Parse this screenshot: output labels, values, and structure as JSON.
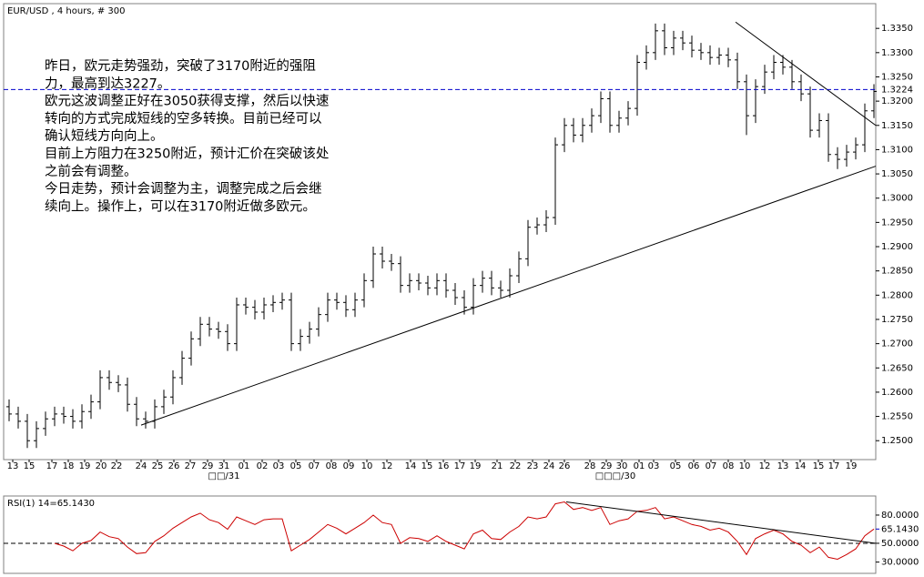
{
  "chart_data": [
    {
      "type": "ohlc",
      "title": "EUR/USD , 4 hours, # 300",
      "color": "#000000",
      "open": [
        1.257,
        1.2555,
        1.254,
        1.25,
        1.2525,
        1.2545,
        1.2555,
        1.255,
        1.254,
        1.256,
        1.258,
        1.263,
        1.262,
        1.2615,
        1.2575,
        1.2545,
        1.254,
        1.257,
        1.259,
        1.263,
        1.267,
        1.271,
        1.274,
        1.273,
        1.2725,
        1.27,
        1.278,
        1.2775,
        1.2765,
        1.278,
        1.2785,
        1.279,
        1.27,
        1.2715,
        1.273,
        1.276,
        1.279,
        1.2785,
        1.277,
        1.279,
        1.283,
        1.2885,
        1.287,
        1.2865,
        1.282,
        1.283,
        1.2825,
        1.2815,
        1.283,
        1.281,
        1.2795,
        1.2775,
        1.282,
        1.2835,
        1.2815,
        1.281,
        1.284,
        1.2875,
        1.294,
        1.2945,
        1.296,
        1.311,
        1.315,
        1.313,
        1.315,
        1.317,
        1.3205,
        1.315,
        1.3165,
        1.3185,
        1.328,
        1.33,
        1.3345,
        1.331,
        1.333,
        1.332,
        1.3305,
        1.33,
        1.329,
        1.3295,
        1.3285,
        1.324,
        1.317,
        1.323,
        1.326,
        1.328,
        1.327,
        1.324,
        1.3215,
        1.314,
        1.316,
        1.309,
        1.308,
        1.3095,
        1.311,
        1.318
      ],
      "high": [
        1.2585,
        1.257,
        1.2555,
        1.254,
        1.256,
        1.257,
        1.257,
        1.2565,
        1.2575,
        1.2595,
        1.2645,
        1.2645,
        1.2635,
        1.263,
        1.259,
        1.256,
        1.2585,
        1.2605,
        1.2645,
        1.2685,
        1.2725,
        1.2755,
        1.2755,
        1.2745,
        1.274,
        1.2795,
        1.2795,
        1.279,
        1.2795,
        1.28,
        1.2805,
        1.2805,
        1.273,
        1.2745,
        1.2775,
        1.2805,
        1.2805,
        1.28,
        1.2805,
        1.2845,
        1.29,
        1.29,
        1.2885,
        1.288,
        1.2845,
        1.2845,
        1.284,
        1.2845,
        1.2845,
        1.2825,
        1.281,
        1.2835,
        1.285,
        1.285,
        1.283,
        1.2855,
        1.289,
        1.2955,
        1.296,
        1.2975,
        1.3125,
        1.3165,
        1.3165,
        1.3165,
        1.3185,
        1.322,
        1.322,
        1.318,
        1.32,
        1.3295,
        1.3315,
        1.336,
        1.336,
        1.3345,
        1.3345,
        1.3335,
        1.332,
        1.3315,
        1.331,
        1.331,
        1.33,
        1.3255,
        1.3245,
        1.3275,
        1.3295,
        1.3295,
        1.3285,
        1.3255,
        1.323,
        1.3175,
        1.3175,
        1.3105,
        1.311,
        1.3125,
        1.3195,
        1.3235
      ],
      "low": [
        1.254,
        1.2525,
        1.2485,
        1.2485,
        1.251,
        1.253,
        1.2535,
        1.2525,
        1.2525,
        1.2545,
        1.2565,
        1.2605,
        1.26,
        1.256,
        1.253,
        1.2525,
        1.2525,
        1.2555,
        1.2575,
        1.2615,
        1.2655,
        1.2695,
        1.2715,
        1.271,
        1.2685,
        1.2685,
        1.276,
        1.275,
        1.275,
        1.2765,
        1.277,
        1.2685,
        1.2685,
        1.27,
        1.2715,
        1.2745,
        1.277,
        1.2755,
        1.2755,
        1.2775,
        1.2815,
        1.2855,
        1.285,
        1.2805,
        1.2805,
        1.281,
        1.28,
        1.28,
        1.2795,
        1.278,
        1.276,
        1.276,
        1.2805,
        1.28,
        1.2795,
        1.2795,
        1.2825,
        1.286,
        1.2925,
        1.293,
        1.2945,
        1.3095,
        1.3115,
        1.3115,
        1.3135,
        1.3155,
        1.3135,
        1.3135,
        1.315,
        1.317,
        1.3265,
        1.3285,
        1.3295,
        1.3295,
        1.3305,
        1.329,
        1.3285,
        1.3275,
        1.3275,
        1.327,
        1.3225,
        1.313,
        1.3155,
        1.3215,
        1.3245,
        1.3255,
        1.3225,
        1.32,
        1.3125,
        1.3125,
        1.3075,
        1.306,
        1.3065,
        1.308,
        1.3095,
        1.3165
      ],
      "close": [
        1.2555,
        1.254,
        1.25,
        1.2525,
        1.2545,
        1.2555,
        1.255,
        1.254,
        1.256,
        1.258,
        1.263,
        1.262,
        1.2615,
        1.2575,
        1.2545,
        1.254,
        1.257,
        1.259,
        1.263,
        1.267,
        1.271,
        1.274,
        1.273,
        1.2725,
        1.27,
        1.278,
        1.2775,
        1.2765,
        1.278,
        1.2785,
        1.279,
        1.27,
        1.2715,
        1.273,
        1.276,
        1.279,
        1.2785,
        1.277,
        1.279,
        1.283,
        1.2885,
        1.287,
        1.2865,
        1.282,
        1.283,
        1.2825,
        1.2815,
        1.283,
        1.281,
        1.2795,
        1.2775,
        1.282,
        1.2835,
        1.2815,
        1.281,
        1.284,
        1.2875,
        1.294,
        1.2945,
        1.296,
        1.311,
        1.315,
        1.313,
        1.315,
        1.317,
        1.3205,
        1.315,
        1.3165,
        1.3185,
        1.328,
        1.33,
        1.3345,
        1.331,
        1.333,
        1.332,
        1.3305,
        1.33,
        1.329,
        1.3295,
        1.3285,
        1.324,
        1.317,
        1.323,
        1.326,
        1.328,
        1.327,
        1.324,
        1.3215,
        1.314,
        1.316,
        1.309,
        1.308,
        1.3095,
        1.311,
        1.318,
        1.322
      ],
      "xlim": [
        -0.6,
        95.2
      ],
      "ylim": [
        1.2461,
        1.3401
      ],
      "y_axis_side": "right",
      "xticks": [
        {
          "value": 0.4,
          "label": "13"
        },
        {
          "value": 2.2,
          "label": "15"
        },
        {
          "value": 4.7,
          "label": "17"
        },
        {
          "value": 6.5,
          "label": "18"
        },
        {
          "value": 8.3,
          "label": "19"
        },
        {
          "value": 10.1,
          "label": "20"
        },
        {
          "value": 11.8,
          "label": "22"
        },
        {
          "value": 14.5,
          "label": "24"
        },
        {
          "value": 16.3,
          "label": "25"
        },
        {
          "value": 18.1,
          "label": "26"
        },
        {
          "value": 19.9,
          "label": "27"
        },
        {
          "value": 21.8,
          "label": "29"
        },
        {
          "value": 23.6,
          "label": "31"
        },
        {
          "value": 25.8,
          "label": "01"
        },
        {
          "value": 27.8,
          "label": "02"
        },
        {
          "value": 29.6,
          "label": "03"
        },
        {
          "value": 31.5,
          "label": "05"
        },
        {
          "value": 33.5,
          "label": "07"
        },
        {
          "value": 35.4,
          "label": "08"
        },
        {
          "value": 37.3,
          "label": "09"
        },
        {
          "value": 39.3,
          "label": "10"
        },
        {
          "value": 41.5,
          "label": "12"
        },
        {
          "value": 44.1,
          "label": "14"
        },
        {
          "value": 45.9,
          "label": "15"
        },
        {
          "value": 47.7,
          "label": "16"
        },
        {
          "value": 49.5,
          "label": "17"
        },
        {
          "value": 51.2,
          "label": "19"
        },
        {
          "value": 53.6,
          "label": "21"
        },
        {
          "value": 55.6,
          "label": "22"
        },
        {
          "value": 57.5,
          "label": "23"
        },
        {
          "value": 59.3,
          "label": "24"
        },
        {
          "value": 61.0,
          "label": "26"
        },
        {
          "value": 63.8,
          "label": "28"
        },
        {
          "value": 65.6,
          "label": "29"
        },
        {
          "value": 67.3,
          "label": "30"
        },
        {
          "value": 69.2,
          "label": "01"
        },
        {
          "value": 70.8,
          "label": "03"
        },
        {
          "value": 73.2,
          "label": "05"
        },
        {
          "value": 75.2,
          "label": "06"
        },
        {
          "value": 77.1,
          "label": "07"
        },
        {
          "value": 79.0,
          "label": "08"
        },
        {
          "value": 80.8,
          "label": "10"
        },
        {
          "value": 83.0,
          "label": "12"
        },
        {
          "value": 85.0,
          "label": "13"
        },
        {
          "value": 86.9,
          "label": "14"
        },
        {
          "value": 88.9,
          "label": "15"
        },
        {
          "value": 90.6,
          "label": "17"
        },
        {
          "value": 92.5,
          "label": "19"
        }
      ],
      "x_group_labels": [
        {
          "value": 23.6,
          "label": "□□/31"
        },
        {
          "value": 66.6,
          "label": "□□□/30"
        }
      ],
      "yticks": [
        {
          "value": 1.25,
          "label": "1.2500"
        },
        {
          "value": 1.255,
          "label": "1.2550"
        },
        {
          "value": 1.26,
          "label": "1.2600"
        },
        {
          "value": 1.265,
          "label": "1.2650"
        },
        {
          "value": 1.27,
          "label": "1.2700"
        },
        {
          "value": 1.275,
          "label": "1.2750"
        },
        {
          "value": 1.28,
          "label": "1.2800"
        },
        {
          "value": 1.285,
          "label": "1.2850"
        },
        {
          "value": 1.29,
          "label": "1.2900"
        },
        {
          "value": 1.295,
          "label": "1.2950"
        },
        {
          "value": 1.3,
          "label": "1.3000"
        },
        {
          "value": 1.305,
          "label": "1.3050"
        },
        {
          "value": 1.31,
          "label": "1.3100"
        },
        {
          "value": 1.315,
          "label": "1.3150"
        },
        {
          "value": 1.32,
          "label": "1.3200"
        },
        {
          "value": 1.325,
          "label": "1.3250"
        },
        {
          "value": 1.33,
          "label": "1.3300"
        },
        {
          "value": 1.335,
          "label": "1.3350"
        }
      ],
      "price_line": {
        "value": 1.3224,
        "label": "1.3224",
        "color": "#0000cc"
      },
      "trend_lines": [
        {
          "x": [
            14.5,
            95.2
          ],
          "y": [
            1.2532,
            1.3066
          ]
        },
        {
          "x": [
            79.8,
            95.2
          ],
          "y": [
            1.3363,
            1.315
          ]
        }
      ],
      "annotation": {
        "color": "#cc0000",
        "lines": [
          "昨日，欧元走势强劲，突破了3170附近的强阻",
          "力，最高到达3227。",
          "欧元这波调整正好在3050获得支撑，然后以快速",
          "转向的方式完成短线的空多转换。目前已经可以",
          "确认短线方向向上。",
          "目前上方阻力在3250附近，预计汇价在突破该处",
          "之前会有调整。",
          "今日走势，预计会调整为主，调整完成之后会继",
          "续向上。操作上，可以在3170附近做多欧元。"
        ]
      }
    },
    {
      "type": "line",
      "title": "RSI(1) 14=65.1430",
      "color": "#cc0000",
      "values": [
        null,
        null,
        null,
        null,
        null,
        50,
        47,
        42,
        50,
        53,
        62,
        57,
        55,
        46,
        39,
        40,
        52,
        58,
        66,
        72,
        78,
        82,
        75,
        72,
        65,
        78,
        74,
        70,
        75,
        76,
        76,
        42,
        48,
        54,
        62,
        70,
        66,
        60,
        66,
        72,
        80,
        72,
        70,
        50,
        56,
        55,
        52,
        58,
        52,
        48,
        44,
        60,
        64,
        55,
        54,
        62,
        68,
        78,
        76,
        78,
        92,
        94,
        86,
        88,
        85,
        88,
        70,
        74,
        76,
        84,
        85,
        88,
        76,
        78,
        74,
        70,
        68,
        64,
        66,
        62,
        52,
        38,
        55,
        60,
        64,
        60,
        52,
        48,
        40,
        46,
        35,
        33,
        38,
        44,
        58,
        65.143
      ],
      "xlim": [
        -0.6,
        95.2
      ],
      "ylim": [
        18,
        100.3
      ],
      "y_axis_side": "right",
      "yticks": [
        {
          "value": 80,
          "label": "80.0000"
        },
        {
          "value": 50,
          "label": "50.0000"
        },
        {
          "value": 30,
          "label": "30.0000"
        }
      ],
      "reference_line": 50,
      "current_value": {
        "value": 65.143,
        "label": "65.1430",
        "color": "#0000cc"
      },
      "trend_lines": [
        {
          "x": [
            61.2,
            95.2
          ],
          "y": [
            94,
            50
          ]
        }
      ]
    }
  ]
}
